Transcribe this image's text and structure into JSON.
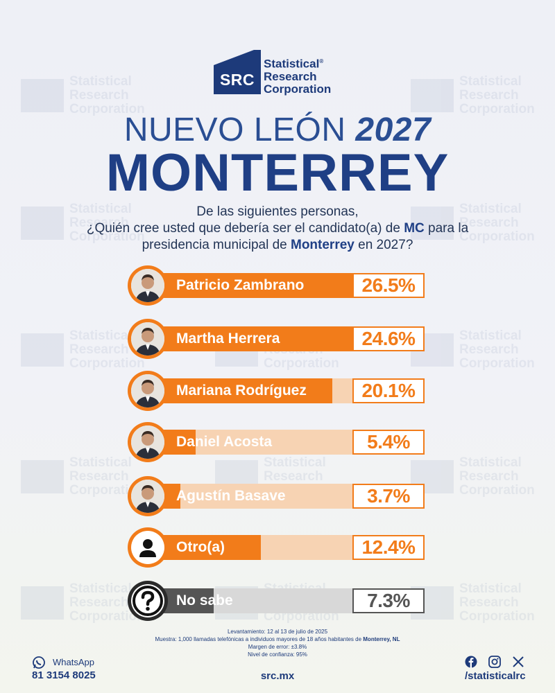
{
  "brand": {
    "abbr": "SRC",
    "name_line1": "Statistical",
    "name_line2": "Research",
    "name_line3": "Corporation",
    "registered": "®",
    "primary_color": "#1d3a7a",
    "accent_color": "#f27c1a"
  },
  "watermark": {
    "abbr": "SRC",
    "line1": "Statistical",
    "line2": "Research",
    "line3": "Corporation"
  },
  "header": {
    "state": "NUEVO LEÓN",
    "year": "2027",
    "city": "MONTERREY"
  },
  "question": {
    "line1": "De las siguientes personas,",
    "line2_pre": "¿Quién cree usted que debería ser el candidato(a) de ",
    "line2_bold": "MC",
    "line2_post": " para la",
    "line3_pre": "presidencia municipal de ",
    "line3_bold": "Monterrey",
    "line3_post": " en 2027?"
  },
  "chart_data": {
    "type": "bar",
    "orientation": "horizontal",
    "title": "NUEVO LEÓN 2027 MONTERREY",
    "unit": "%",
    "xlim": [
      0,
      30
    ],
    "categories": [
      "Patricio Zambrano",
      "Martha Herrera",
      "Mariana Rodríguez",
      "Daniel Acosta",
      "Agustín Basave",
      "Otro(a)",
      "No sabe"
    ],
    "values": [
      26.5,
      24.6,
      20.1,
      5.4,
      3.7,
      12.4,
      7.3
    ],
    "labels": [
      "26.5%",
      "24.6%",
      "20.1%",
      "5.4%",
      "3.7%",
      "12.4%",
      "7.3%"
    ],
    "colors": [
      "#f27c1a",
      "#f27c1a",
      "#f27c1a",
      "#f27c1a",
      "#f27c1a",
      "#f27c1a",
      "#555555"
    ],
    "icons": [
      "person-photo",
      "person-photo",
      "person-photo",
      "person-photo",
      "person-photo",
      "generic-user-icon",
      "question-mark-icon"
    ]
  },
  "methodology": {
    "line1": "Levantamiento: 12 al 13 de julio de 2025",
    "line2_pre": "Muestra: 1,000 llamadas telefónicas a individuos mayores de 18 años habitantes de ",
    "line2_bold": "Monterrey, NL",
    "line3": "Margen de error: ±3.8%",
    "line4": "Nivel de confianza: 95%"
  },
  "footer": {
    "whatsapp_label": "WhatsApp",
    "phone": "81 3154 8025",
    "website": "src.mx",
    "social_handle": "/statisticalrc",
    "social_icons": [
      "facebook-icon",
      "instagram-icon",
      "x-icon"
    ]
  }
}
